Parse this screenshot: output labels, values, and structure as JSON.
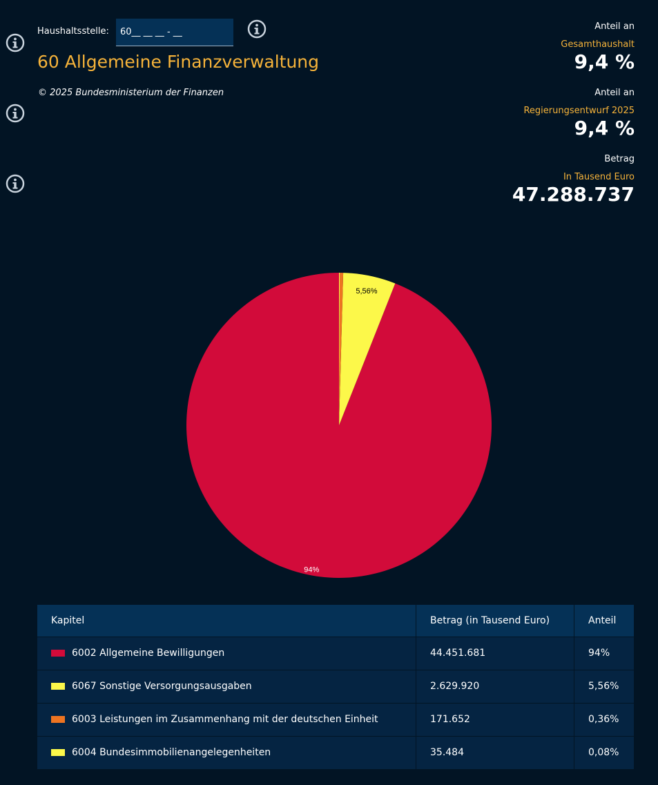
{
  "header": {
    "haushaltsstelle_label": "Haushaltsstelle:",
    "haushaltsstelle_value": "60__ __ __ - __",
    "title": "60 Allgemeine Finanzverwaltung",
    "copyright": "© 2025 Bundesministerium der Finanzen"
  },
  "icons": {
    "info": "info-circle-icon"
  },
  "stats": [
    {
      "label": "Anteil an",
      "sublabel": "Gesamthaushalt",
      "value": "9,4 %"
    },
    {
      "label": "Anteil an",
      "sublabel": "Regierungsentwurf 2025",
      "value": "9,4 %"
    },
    {
      "label": "Betrag",
      "sublabel": "In Tausend Euro",
      "value": "47.288.737"
    }
  ],
  "colors": {
    "background": "#021424",
    "accent": "#f6b33a",
    "header_row": "#053156",
    "body_row": "#052442"
  },
  "chart_data": {
    "type": "pie",
    "categories": [
      "6002 Allgemeine Bewilligungen",
      "6067 Sonstige Versorgungsausgaben",
      "6003 Leistungen im Zusammenhang mit der deutschen Einheit",
      "6004 Bundesimmobilienangelegenheiten"
    ],
    "values": [
      94.0,
      5.56,
      0.36,
      0.08
    ],
    "colors": [
      "#d20b3a",
      "#fcf84a",
      "#ee7421",
      "#fcf84a"
    ],
    "data_labels": [
      "94%",
      "5,56%",
      "",
      ""
    ]
  },
  "table": {
    "headers": [
      "Kapitel",
      "Betrag (in Tausend Euro)",
      "Anteil"
    ],
    "rows": [
      {
        "kapitel": "6002 Allgemeine Bewilligungen",
        "betrag": "44.451.681",
        "anteil": "94%",
        "color": "#d20b3a"
      },
      {
        "kapitel": "6067 Sonstige Versorgungsausgaben",
        "betrag": "2.629.920",
        "anteil": "5,56%",
        "color": "#fcf84a"
      },
      {
        "kapitel": "6003 Leistungen im Zusammenhang mit der deutschen Einheit",
        "betrag": "171.652",
        "anteil": "0,36%",
        "color": "#ee7421"
      },
      {
        "kapitel": "6004 Bundesimmobilienangelegenheiten",
        "betrag": "35.484",
        "anteil": "0,08%",
        "color": "#fcf84a"
      }
    ]
  }
}
